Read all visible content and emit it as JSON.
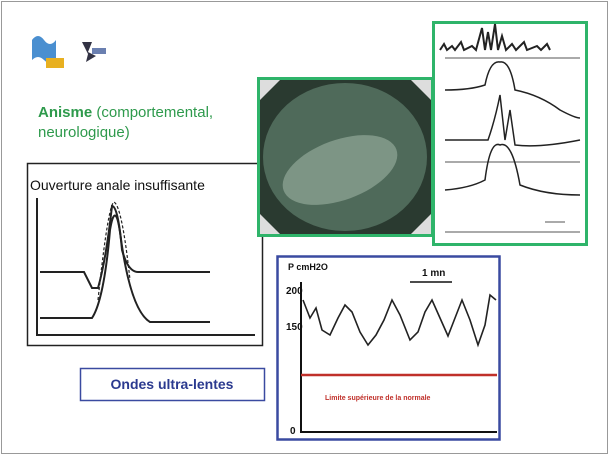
{
  "heading": {
    "term": "Anisme",
    "detail_line1": "(comportemental,",
    "detail_line2": "neurologique)"
  },
  "figure_left": {
    "caption": "Ouverture anale insuffisante"
  },
  "figure_pressure": {
    "axis_label": "P cmH2O",
    "ticks": [
      200,
      150,
      0
    ],
    "scale_label": "1 mn",
    "limit_label": "Limite supérieure de la normale"
  },
  "caption_box": {
    "text": "Ondes ultra-lentes"
  }
}
